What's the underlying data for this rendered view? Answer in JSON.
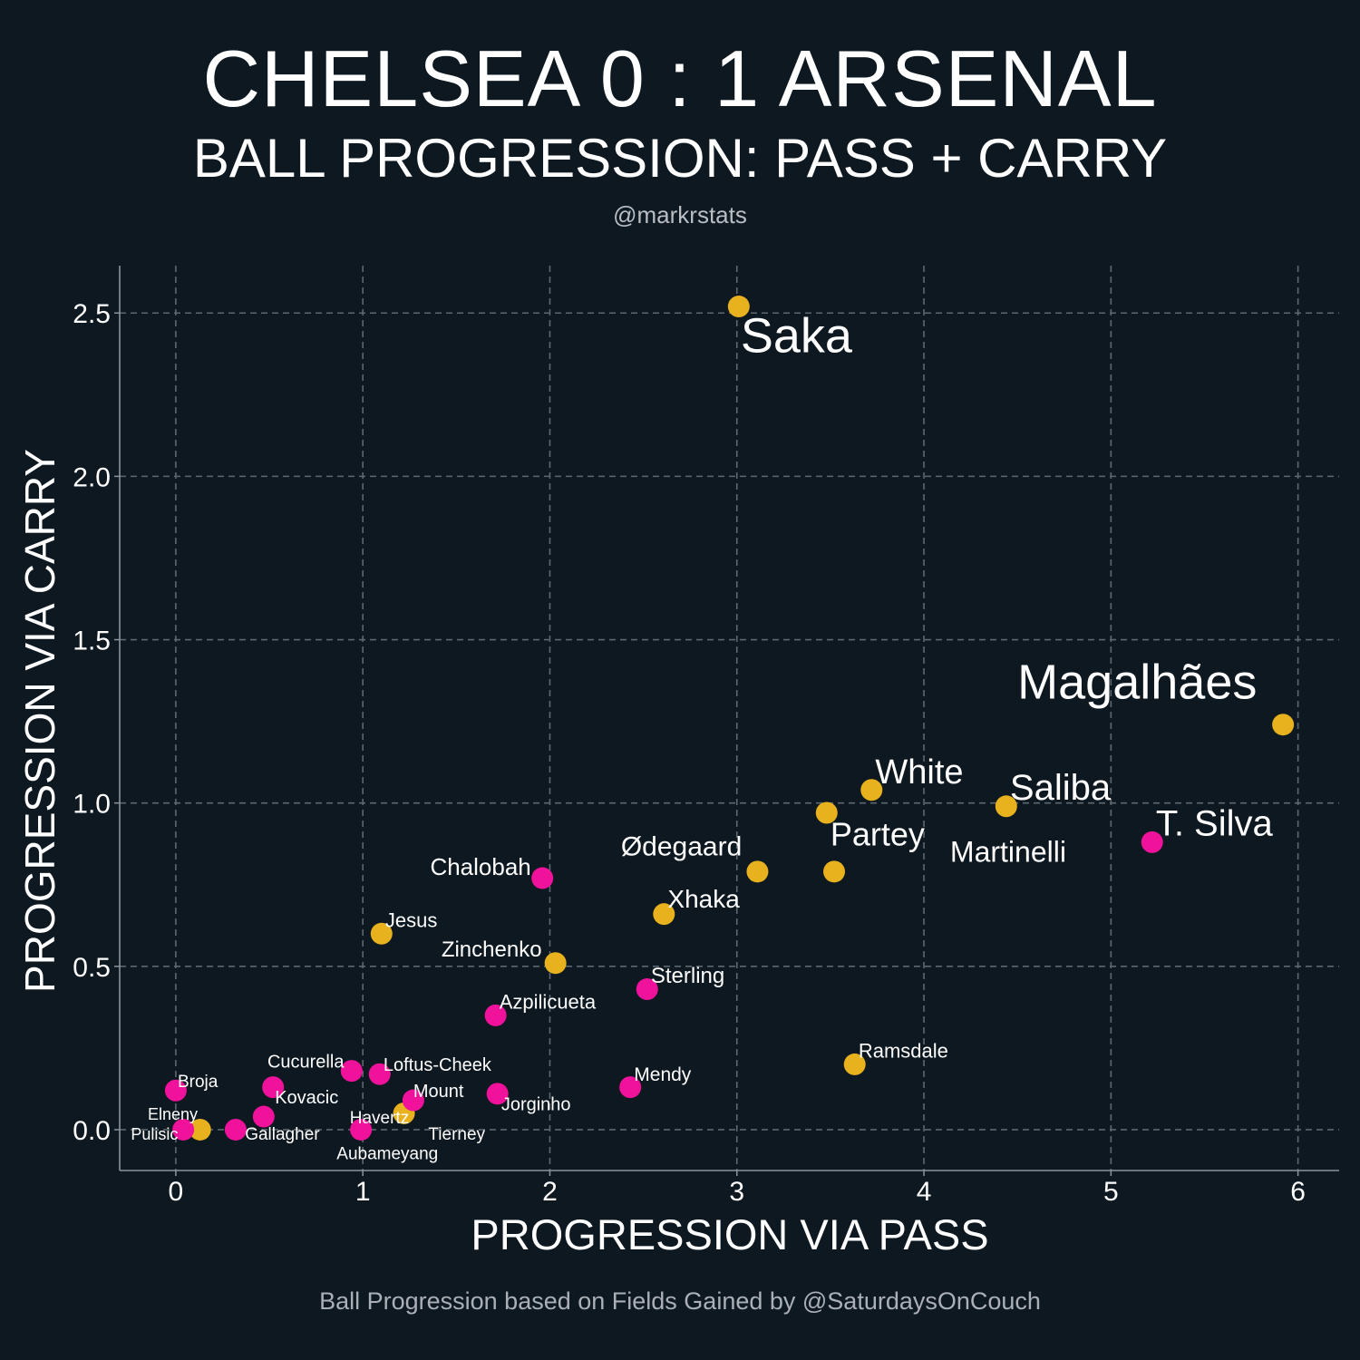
{
  "header": {
    "title": "CHELSEA 0 : 1 ARSENAL",
    "subtitle": "BALL PROGRESSION: PASS + CARRY",
    "byline": "@markrstats"
  },
  "footer": {
    "caption": "Ball Progression based on Fields Gained by @SaturdaysOnCouch"
  },
  "colors": {
    "background": "#0e1820",
    "arsenal": "#e8b21e",
    "chelsea": "#f0129a",
    "grid": "#5d6770",
    "axis": "#8b949b",
    "text": "#ffffff"
  },
  "chart_data": {
    "type": "scatter",
    "xlabel": "PROGRESSION VIA PASS",
    "ylabel": "PROGRESSION VIA CARRY",
    "xlim": [
      -0.3,
      6.22
    ],
    "ylim": [
      -0.125,
      2.645
    ],
    "xticks": [
      0,
      1,
      2,
      3,
      4,
      5,
      6
    ],
    "yticks": [
      0.0,
      0.5,
      1.0,
      1.5,
      2.0,
      2.5
    ],
    "xtick_labels": [
      "0",
      "1",
      "2",
      "3",
      "4",
      "5",
      "6"
    ],
    "ytick_labels": [
      "0.0",
      "0.5",
      "1.0",
      "1.5",
      "2.0",
      "2.5"
    ],
    "grid": true,
    "series": [
      {
        "team": "arsenal",
        "points": [
          {
            "x": 3.01,
            "y": 2.52
          },
          {
            "x": 5.92,
            "y": 1.24
          },
          {
            "x": 3.72,
            "y": 1.04
          },
          {
            "x": 4.44,
            "y": 0.99
          },
          {
            "x": 3.48,
            "y": 0.97
          },
          {
            "x": 3.52,
            "y": 0.79
          },
          {
            "x": 3.11,
            "y": 0.79
          },
          {
            "x": 2.61,
            "y": 0.66
          },
          {
            "x": 1.1,
            "y": 0.6
          },
          {
            "x": 2.03,
            "y": 0.51
          },
          {
            "x": 3.63,
            "y": 0.2
          },
          {
            "x": 1.22,
            "y": 0.05
          },
          {
            "x": 0.13,
            "y": 0.0
          }
        ]
      },
      {
        "team": "chelsea",
        "points": [
          {
            "x": 5.22,
            "y": 0.88
          },
          {
            "x": 1.96,
            "y": 0.77
          },
          {
            "x": 2.52,
            "y": 0.43
          },
          {
            "x": 1.71,
            "y": 0.35
          },
          {
            "x": 2.43,
            "y": 0.13
          },
          {
            "x": 1.72,
            "y": 0.11
          },
          {
            "x": 1.27,
            "y": 0.09
          },
          {
            "x": 1.09,
            "y": 0.17
          },
          {
            "x": 0.94,
            "y": 0.18
          },
          {
            "x": 0.52,
            "y": 0.13
          },
          {
            "x": 0.47,
            "y": 0.04
          },
          {
            "x": 0.32,
            "y": 0.0
          },
          {
            "x": 0.99,
            "y": 0.0
          },
          {
            "x": 0.04,
            "y": 0.0
          },
          {
            "x": 0.0,
            "y": 0.12
          }
        ]
      }
    ],
    "annotations": [
      {
        "text": "Saka",
        "x": 3.02,
        "y": 2.38,
        "size": 54
      },
      {
        "text": "Magalhães",
        "x": 4.5,
        "y": 1.32,
        "size": 54
      },
      {
        "text": "White",
        "x": 3.74,
        "y": 1.06,
        "size": 38
      },
      {
        "text": "Saliba",
        "x": 4.46,
        "y": 1.01,
        "size": 40
      },
      {
        "text": "T. Silva",
        "x": 5.24,
        "y": 0.9,
        "size": 40
      },
      {
        "text": "Partey",
        "x": 3.5,
        "y": 0.87,
        "size": 36
      },
      {
        "text": "Martinelli",
        "x": 4.14,
        "y": 0.82,
        "size": 32
      },
      {
        "text": "Ødegaard",
        "x": 2.38,
        "y": 0.84,
        "size": 30
      },
      {
        "text": "Chalobah",
        "x": 1.36,
        "y": 0.78,
        "size": 26
      },
      {
        "text": "Xhaka",
        "x": 2.63,
        "y": 0.68,
        "size": 28
      },
      {
        "text": "Jesus",
        "x": 1.12,
        "y": 0.62,
        "size": 22
      },
      {
        "text": "Zinchenko",
        "x": 1.42,
        "y": 0.53,
        "size": 24
      },
      {
        "text": "Sterling",
        "x": 2.54,
        "y": 0.45,
        "size": 24
      },
      {
        "text": "Azpilicueta",
        "x": 1.73,
        "y": 0.37,
        "size": 22
      },
      {
        "text": "Ramsdale",
        "x": 3.65,
        "y": 0.22,
        "size": 22
      },
      {
        "text": "Cucurella",
        "x": 0.49,
        "y": 0.19,
        "size": 20
      },
      {
        "text": "Loftus-Cheek",
        "x": 1.11,
        "y": 0.18,
        "size": 20
      },
      {
        "text": "Mendy",
        "x": 2.45,
        "y": 0.15,
        "size": 21
      },
      {
        "text": "Broja",
        "x": 0.01,
        "y": 0.13,
        "size": 19
      },
      {
        "text": "Mount",
        "x": 1.27,
        "y": 0.1,
        "size": 20
      },
      {
        "text": "Kovacic",
        "x": 0.53,
        "y": 0.08,
        "size": 20
      },
      {
        "text": "Jorginho",
        "x": 1.74,
        "y": 0.06,
        "size": 20
      },
      {
        "text": "Elneny",
        "x": -0.15,
        "y": 0.03,
        "size": 18
      },
      {
        "text": "Havertz",
        "x": 0.93,
        "y": 0.02,
        "size": 19
      },
      {
        "text": "Pulisic",
        "x": -0.24,
        "y": -0.03,
        "size": 18
      },
      {
        "text": "Gallagher",
        "x": 0.37,
        "y": -0.03,
        "size": 19
      },
      {
        "text": "Tierney",
        "x": 1.35,
        "y": -0.03,
        "size": 19
      },
      {
        "text": "Aubameyang",
        "x": 0.86,
        "y": -0.09,
        "size": 19
      }
    ]
  }
}
